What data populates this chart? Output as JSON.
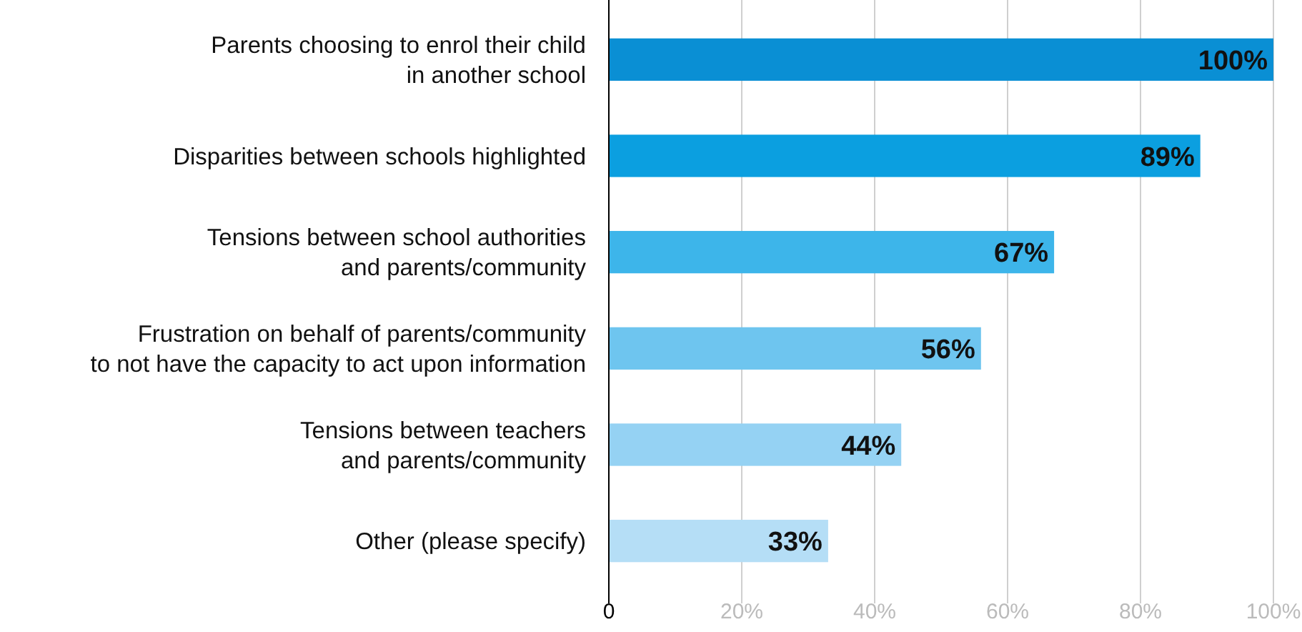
{
  "chart_data": {
    "type": "bar",
    "orientation": "horizontal",
    "categories": [
      "Parents choosing to enrol their child\nin another school",
      "Disparities between schools highlighted",
      "Tensions between school authorities\nand parents/community",
      "Frustration on behalf of parents/community\nto not have the capacity to act upon information",
      "Tensions between teachers\nand parents/community",
      "Other (please specify)"
    ],
    "values": [
      100,
      89,
      67,
      56,
      44,
      33
    ],
    "colors": [
      "#0a8fd4",
      "#0b9fe0",
      "#3db5ea",
      "#6ec5ef",
      "#95d2f3",
      "#b5def6"
    ],
    "value_labels": [
      "100%",
      "89%",
      "67%",
      "56%",
      "44%",
      "33%"
    ],
    "xlim": [
      0,
      100
    ],
    "xticks": [
      0,
      {
        "value": 20,
        "label": "20%"
      },
      {
        "value": 40,
        "label": "40%"
      },
      {
        "value": 60,
        "label": "60%"
      },
      {
        "value": 80,
        "label": "80%"
      },
      {
        "value": 100,
        "label": "100%"
      }
    ],
    "grid": "x"
  }
}
